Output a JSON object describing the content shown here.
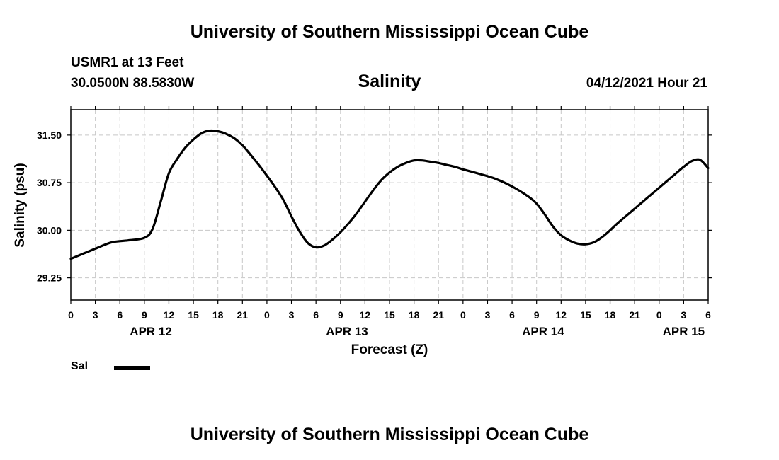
{
  "page": {
    "title_top": "University of Southern Mississippi Ocean Cube",
    "title_bottom": "University of Southern Mississippi Ocean Cube",
    "station": "USMR1 at 13 Feet",
    "location": "30.0500N  88.5830W",
    "variable": "Salinity",
    "timestamp": "04/12/2021 Hour 21"
  },
  "chart_data": {
    "type": "line",
    "ylabel": "Salinity (psu)",
    "xlabel": "Forecast (Z)",
    "ylim": [
      28.9,
      31.9
    ],
    "xlim": [
      0,
      78
    ],
    "yticks": [
      29.25,
      30.0,
      30.75,
      31.5
    ],
    "ytick_labels": [
      "29.25",
      "30.00",
      "30.75",
      "31.50"
    ],
    "xticks": [
      0,
      3,
      6,
      9,
      12,
      15,
      18,
      21,
      24,
      27,
      30,
      33,
      36,
      39,
      42,
      45,
      48,
      51,
      54,
      57,
      60,
      63,
      66,
      69,
      72,
      75,
      78
    ],
    "xtick_labels": [
      "0",
      "3",
      "6",
      "9",
      "12",
      "15",
      "18",
      "21",
      "0",
      "3",
      "6",
      "9",
      "12",
      "15",
      "18",
      "21",
      "0",
      "3",
      "6",
      "9",
      "12",
      "15",
      "18",
      "21",
      "0",
      "3",
      "6"
    ],
    "date_labels": [
      {
        "x": 9.8,
        "label": "APR 12"
      },
      {
        "x": 33.8,
        "label": "APR 13"
      },
      {
        "x": 57.8,
        "label": "APR 14"
      },
      {
        "x": 75.0,
        "label": "APR 15"
      }
    ],
    "grid": true,
    "legend_position": "bottom-left",
    "series": [
      {
        "name": "Sal",
        "color": "#000000",
        "x": [
          0,
          1.5,
          3,
          5,
          7,
          9,
          10,
          11,
          12,
          13,
          14,
          15,
          16,
          17,
          18,
          19,
          20,
          21,
          22,
          23,
          24,
          25,
          26,
          27,
          28,
          29,
          30,
          31,
          32,
          33,
          34,
          35,
          36,
          37,
          38,
          39,
          40,
          41,
          42,
          43,
          44,
          45,
          46,
          47,
          48,
          50,
          52,
          54,
          56,
          57,
          58,
          59,
          60,
          61,
          62,
          63,
          64,
          65,
          66,
          67,
          68,
          69,
          70,
          71,
          72,
          73,
          74,
          75,
          76,
          77,
          78
        ],
        "y": [
          29.55,
          29.63,
          29.71,
          29.81,
          29.84,
          29.88,
          30.02,
          30.45,
          30.9,
          31.12,
          31.3,
          31.43,
          31.53,
          31.57,
          31.56,
          31.52,
          31.45,
          31.34,
          31.19,
          31.03,
          30.86,
          30.68,
          30.48,
          30.22,
          29.98,
          29.8,
          29.73,
          29.76,
          29.85,
          29.97,
          30.11,
          30.27,
          30.45,
          30.63,
          30.79,
          30.91,
          31.0,
          31.06,
          31.1,
          31.1,
          31.08,
          31.06,
          31.03,
          31.0,
          30.96,
          30.89,
          30.81,
          30.69,
          30.53,
          30.42,
          30.25,
          30.06,
          29.92,
          29.84,
          29.79,
          29.78,
          29.81,
          29.89,
          30.0,
          30.12,
          30.23,
          30.34,
          30.45,
          30.56,
          30.67,
          30.78,
          30.89,
          31.0,
          31.09,
          31.11,
          30.98
        ]
      }
    ]
  }
}
